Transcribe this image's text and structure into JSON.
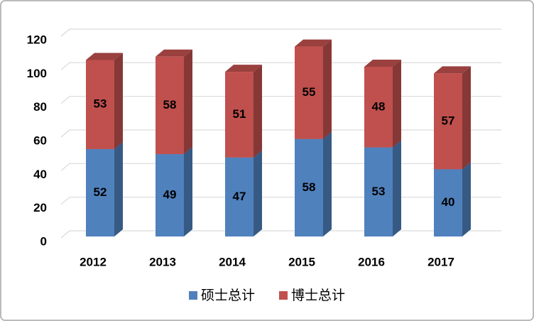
{
  "chart_data": {
    "type": "bar3d_stacked",
    "categories": [
      "2012",
      "2013",
      "2014",
      "2015",
      "2016",
      "2017"
    ],
    "series": [
      {
        "name": "硕士总计",
        "color": "#4f81bd",
        "values": [
          52,
          49,
          47,
          58,
          53,
          40
        ]
      },
      {
        "name": "博士总计",
        "color": "#c0504d",
        "values": [
          53,
          58,
          51,
          55,
          48,
          57
        ]
      }
    ],
    "ylim": [
      0,
      120
    ],
    "yticks": [
      0,
      20,
      40,
      60,
      80,
      100,
      120
    ],
    "grid": true
  }
}
